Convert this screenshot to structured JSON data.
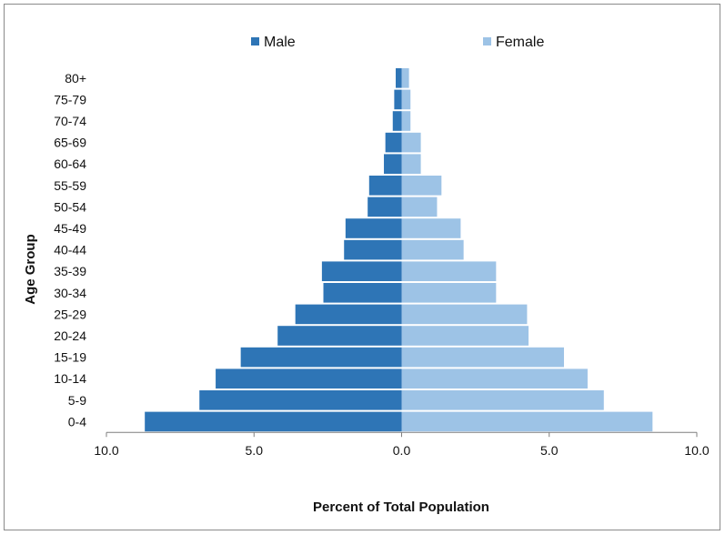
{
  "chart_data": {
    "type": "bar",
    "orientation": "horizontal-diverging",
    "title": "",
    "xlabel": "Percent of Total Population",
    "ylabel": "Age Group",
    "categories": [
      "80+",
      "75-79",
      "70-74",
      "65-69",
      "60-64",
      "55-59",
      "50-54",
      "45-49",
      "40-44",
      "35-39",
      "30-34",
      "25-29",
      "20-24",
      "15-19",
      "10-14",
      "5-9",
      "0-4"
    ],
    "series": [
      {
        "name": "Male",
        "color": "#2e75b6",
        "values": [
          0.2,
          0.25,
          0.3,
          0.55,
          0.6,
          1.1,
          1.15,
          1.9,
          1.95,
          2.7,
          2.65,
          3.6,
          4.2,
          5.45,
          6.3,
          6.85,
          8.7
        ]
      },
      {
        "name": "Female",
        "color": "#9dc3e6",
        "values": [
          0.25,
          0.3,
          0.3,
          0.65,
          0.65,
          1.35,
          1.2,
          2.0,
          2.1,
          3.2,
          3.2,
          4.25,
          4.3,
          5.5,
          6.3,
          6.85,
          8.5
        ]
      }
    ],
    "xlim": [
      -10,
      10
    ],
    "x_ticks": [
      -10,
      -5,
      0,
      5,
      10
    ],
    "x_tick_labels": [
      "10.0",
      "5.0",
      "0.0",
      "5.0",
      "10.0"
    ],
    "legend_position": "top",
    "grid": false
  }
}
